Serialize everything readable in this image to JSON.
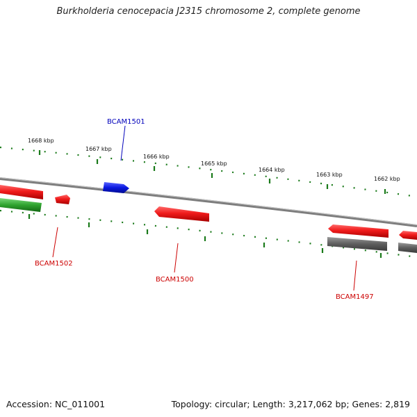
{
  "title": "Burkholderia cenocepacia J2315 chromosome 2, complete genome",
  "ticks": [
    "1668 kbp",
    "1667 kbp",
    "1666 kbp",
    "1665 kbp",
    "1664 kbp",
    "1663 kbp",
    "1662 kbp"
  ],
  "gene_labels": [
    "BCAM1501",
    "BCAM1502",
    "BCAM1500",
    "BCAM1497"
  ],
  "colors": {
    "forward_gene": "#e8141c",
    "reverse_gene_blue": "#0a18e0",
    "gc_skew": "#2ea32e",
    "gray_feature": "#606060",
    "backbone": "#7d7d7d",
    "tick_marks": "#1a7a1a",
    "label_red": "#cc0000",
    "label_blue": "#0000bb"
  },
  "footer": {
    "accession": "Accession: NC_011001",
    "summary": "Topology: circular; Length: 3,217,062 bp; Genes: 2,819"
  }
}
